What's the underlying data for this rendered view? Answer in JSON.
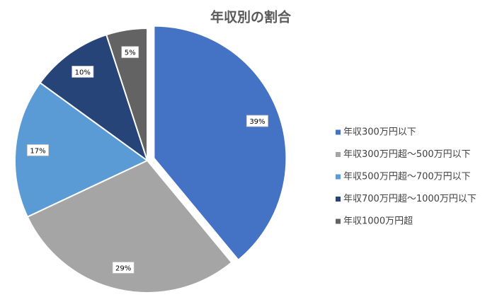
{
  "chart_data": {
    "type": "pie",
    "title": "年収別の割合",
    "categories": [
      "年収300万円以下",
      "年収300万円超～500万円以下",
      "年収500万円超～700万円以下",
      "年収700万円超～1000万円以下",
      "年収1000万円超"
    ],
    "values": [
      39,
      29,
      17,
      10,
      5
    ],
    "value_labels": [
      "39%",
      "29%",
      "17%",
      "10%",
      "5%"
    ],
    "colors": [
      "#4472c4",
      "#a5a5a5",
      "#5b9bd5",
      "#264478",
      "#636363"
    ],
    "legend": "right"
  }
}
